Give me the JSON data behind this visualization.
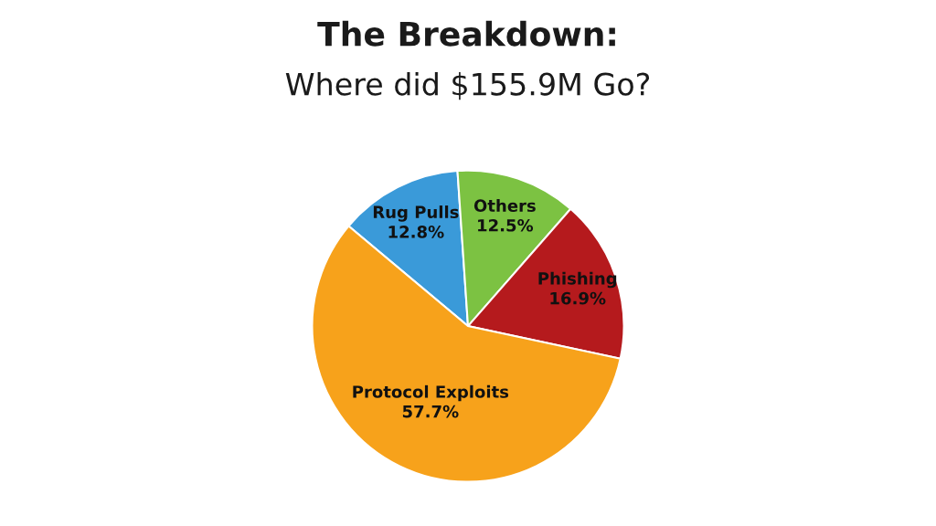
{
  "chart_data": {
    "type": "pie",
    "title": "The Breakdown:",
    "subtitle": "Where did $155.9M Go?",
    "categories": [
      "Rug Pulls",
      "Others",
      "Phishing",
      "Protocol Exploits"
    ],
    "values": [
      12.8,
      12.5,
      16.9,
      57.7
    ],
    "value_labels": [
      "12.8%",
      "12.5%",
      "16.9%",
      "57.7%"
    ],
    "colors": [
      "#3a9ad9",
      "#7cc242",
      "#b51a1d",
      "#f7a21b"
    ]
  }
}
